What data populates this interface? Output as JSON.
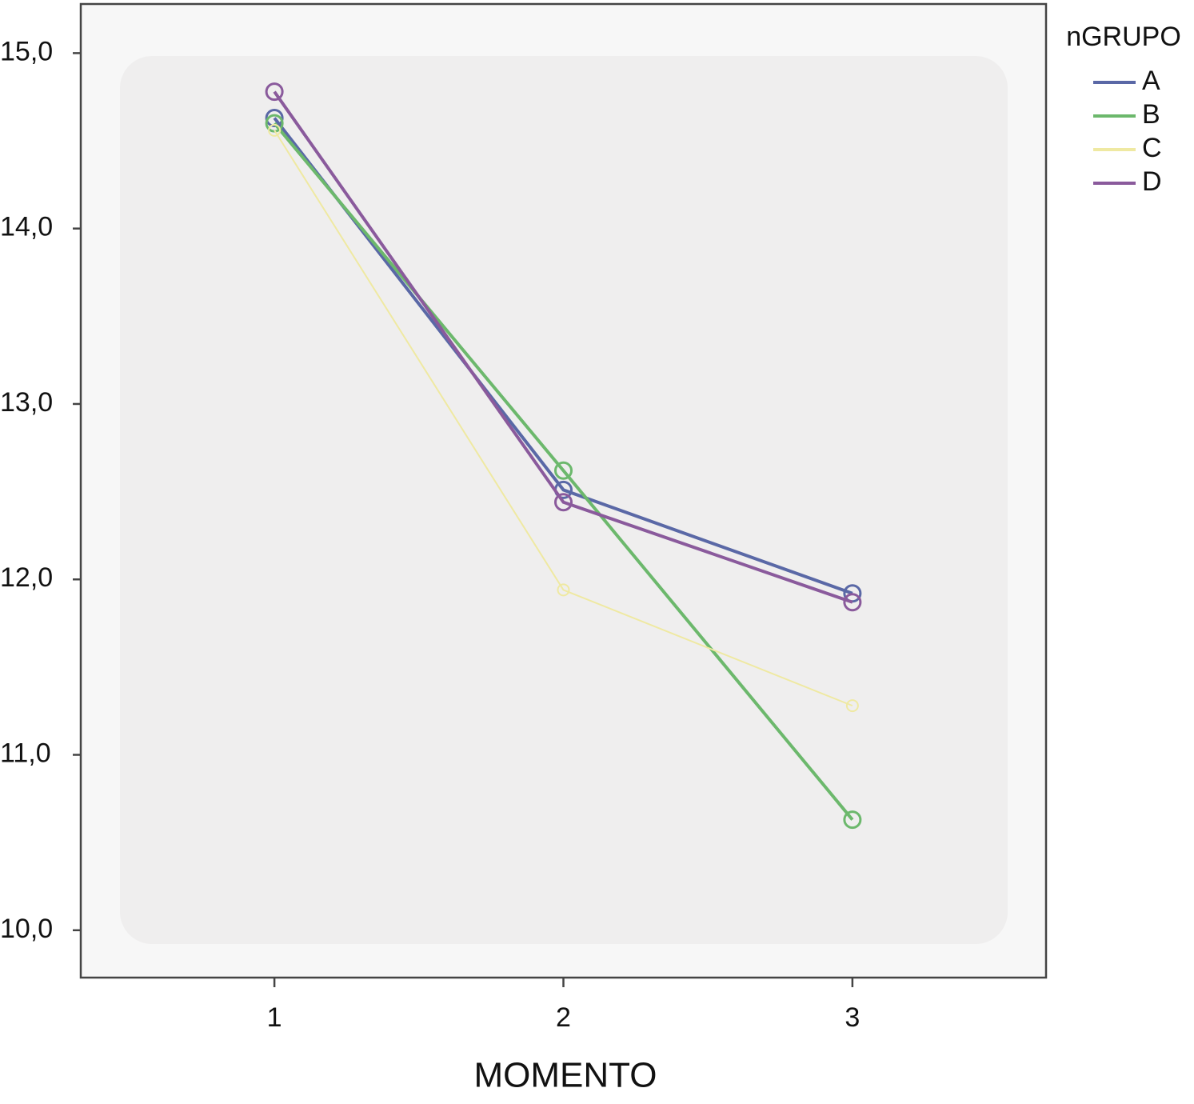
{
  "chart_data": {
    "type": "line",
    "x_label": "MOMENTO",
    "legend_title": "nGRUPO",
    "legend": "right",
    "x": [
      1,
      2,
      3
    ],
    "xlim": [
      0.33,
      3.67
    ],
    "xticks": [
      1,
      2,
      3
    ],
    "ylim": [
      9.73,
      15.28
    ],
    "yticks": [
      {
        "value": 10,
        "label": "10,0"
      },
      {
        "value": 11,
        "label": "11,0"
      },
      {
        "value": 12,
        "label": "12,0"
      },
      {
        "value": 13,
        "label": "13,0"
      },
      {
        "value": 14,
        "label": "14,0"
      },
      {
        "value": 15,
        "label": "15,0"
      }
    ],
    "series": [
      {
        "name": "A",
        "color": "#5a68a6",
        "values": [
          14.63,
          12.51,
          11.92
        ]
      },
      {
        "name": "B",
        "color": "#6cb86c",
        "values": [
          14.6,
          12.62,
          10.63
        ]
      },
      {
        "name": "C",
        "color": "#efe9a2",
        "values": [
          14.56,
          11.94,
          11.28
        ]
      },
      {
        "name": "D",
        "color": "#8a5a9c",
        "values": [
          14.78,
          12.44,
          11.87
        ]
      }
    ]
  }
}
